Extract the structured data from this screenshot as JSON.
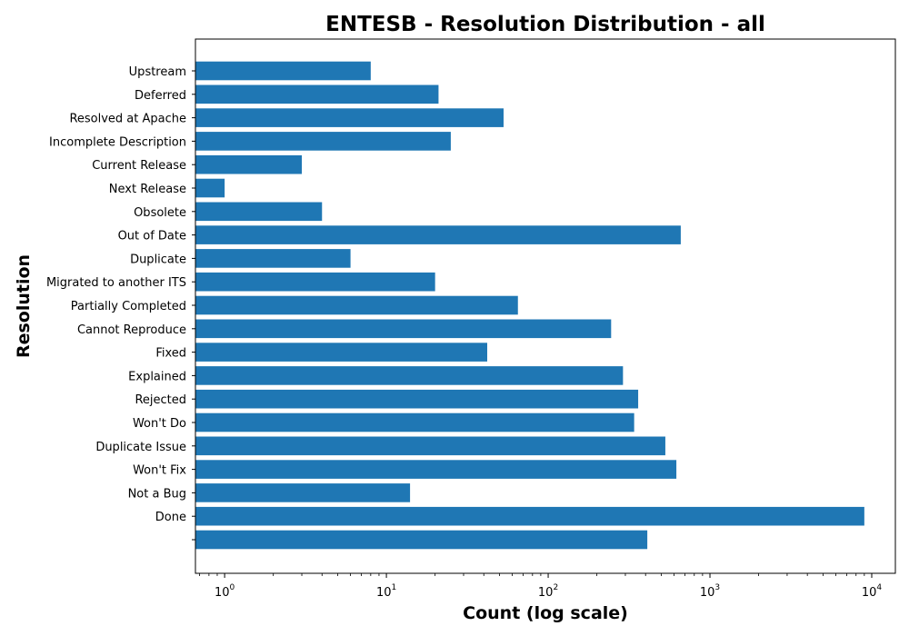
{
  "chart_data": {
    "type": "bar",
    "orientation": "horizontal",
    "title": "ENTESB - Resolution Distribution - all",
    "xlabel": "Count (log scale)",
    "ylabel": "Resolution",
    "x_scale": "log",
    "xlim": [
      0.66,
      14000
    ],
    "x_ticks": [
      1,
      10,
      100,
      1000,
      10000
    ],
    "x_tick_labels": [
      {
        "base": "10",
        "exp": "0"
      },
      {
        "base": "10",
        "exp": "1"
      },
      {
        "base": "10",
        "exp": "2"
      },
      {
        "base": "10",
        "exp": "3"
      },
      {
        "base": "10",
        "exp": "4"
      }
    ],
    "grid": false,
    "bar_color": "#1f77b4",
    "categories": [
      "",
      "Done",
      "Not a Bug",
      "Won't Fix",
      "Duplicate Issue",
      "Won't Do",
      "Rejected",
      "Explained",
      "Fixed",
      "Cannot Reproduce",
      "Partially Completed",
      "Migrated to another ITS",
      "Duplicate",
      "Out of Date",
      "Obsolete",
      "Next Release",
      "Current Release",
      "Incomplete Description",
      "Resolved at Apache",
      "Deferred",
      "Upstream"
    ],
    "values": [
      410,
      9000,
      14,
      620,
      530,
      340,
      360,
      290,
      42,
      245,
      65,
      20,
      6,
      660,
      4,
      1,
      3,
      25,
      53,
      21,
      8
    ]
  }
}
